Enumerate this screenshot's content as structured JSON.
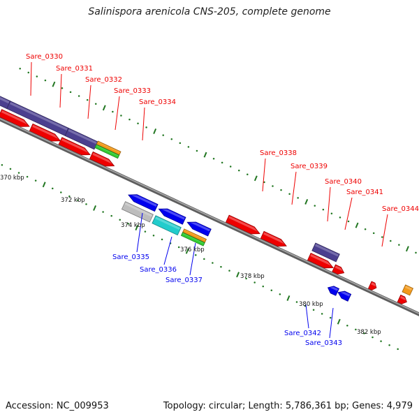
{
  "title": "Salinispora arenicola CNS-205, complete genome",
  "footer": {
    "accession": "Accession: NC_009953",
    "summary": "Topology: circular; Length: 5,786,361 bp; Genes: 4,979"
  },
  "colors": {
    "backbone": "#808080",
    "forward_gene": "#ee0000",
    "reverse_gene": "#0000ee",
    "domain_purple": "#4b3f8f",
    "domain_orange": "#f39a1a",
    "domain_green": "#33cc33",
    "domain_cyan": "#22cccc",
    "domain_grey": "#bdbdbd",
    "tick": "#227722"
  },
  "scale_labels": [
    "370 kbp",
    "372 kbp",
    "374 kbp",
    "376 kbp",
    "378 kbp",
    "380 kbp",
    "382 kbp"
  ],
  "forward_gene_labels": [
    "Sare_0330",
    "Sare_0331",
    "Sare_0332",
    "Sare_0333",
    "Sare_0334",
    "Sare_0338",
    "Sare_0339",
    "Sare_0340",
    "Sare_0341",
    "Sare_0344"
  ],
  "reverse_gene_labels": [
    "Sare_0335",
    "Sare_0336",
    "Sare_0337",
    "Sare_0342",
    "Sare_0343"
  ]
}
